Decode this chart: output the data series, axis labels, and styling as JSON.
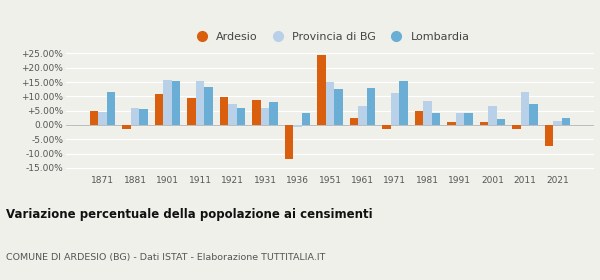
{
  "years": [
    1871,
    1881,
    1901,
    1911,
    1921,
    1931,
    1936,
    1951,
    1961,
    1971,
    1981,
    1991,
    2001,
    2011,
    2021
  ],
  "ardesio": [
    5.0,
    -1.5,
    10.8,
    9.3,
    9.9,
    8.8,
    -12.0,
    24.5,
    2.5,
    -1.5,
    5.0,
    1.0,
    1.0,
    -1.5,
    -7.5
  ],
  "provincia_bg": [
    4.5,
    5.8,
    15.8,
    15.2,
    7.3,
    5.8,
    -0.8,
    15.0,
    6.7,
    11.0,
    8.3,
    4.0,
    6.7,
    11.5,
    1.5
  ],
  "lombardia": [
    11.5,
    5.5,
    15.5,
    13.2,
    5.8,
    7.9,
    4.3,
    12.5,
    12.8,
    15.2,
    4.0,
    4.0,
    2.0,
    7.2,
    2.5
  ],
  "color_ardesio": "#d95f0e",
  "color_provincia": "#b8d0e8",
  "color_lombardia": "#6aaed6",
  "bg_color": "#f0f0eb",
  "title": "Variazione percentuale della popolazione ai censimenti",
  "subtitle": "COMUNE DI ARDESIO (BG) - Dati ISTAT - Elaborazione TUTTITALIA.IT",
  "ylim": [
    -17,
    28
  ],
  "yticks": [
    -15,
    -10,
    -5,
    0,
    5,
    10,
    15,
    20,
    25
  ]
}
